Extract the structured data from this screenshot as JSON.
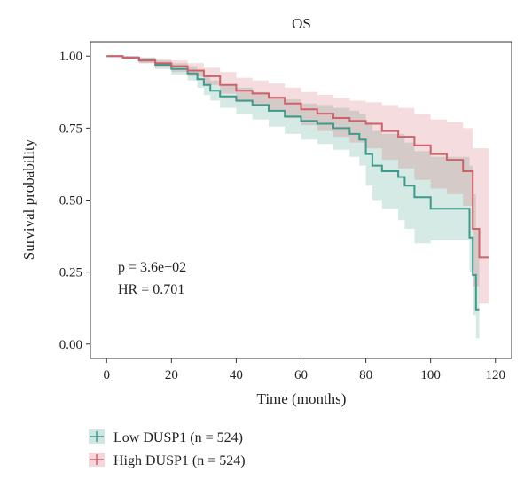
{
  "chart_data": {
    "type": "line",
    "subtype": "kaplan-meier survival curve with confidence bands",
    "title": "OS",
    "xlabel": "Time (months)",
    "ylabel": "Survival probability",
    "xlim": [
      -5,
      125
    ],
    "ylim": [
      -0.05,
      1.05
    ],
    "xticks": [
      0,
      20,
      40,
      60,
      80,
      100,
      120
    ],
    "yticks": [
      0.0,
      0.25,
      0.5,
      0.75,
      1.0
    ],
    "xtick_labels": [
      "0",
      "20",
      "40",
      "60",
      "80",
      "100",
      "120"
    ],
    "ytick_labels": [
      "0.00",
      "0.25",
      "0.50",
      "0.75",
      "1.00"
    ],
    "annotations": [
      "p = 3.6e−02",
      "HR = 0.701"
    ],
    "legend_position": "bottom-left, below plot",
    "grid": false,
    "series": [
      {
        "name": "Low DUSP1 (n = 524)",
        "color": "#3e9a8a",
        "band_color": "#cfe3df",
        "x": [
          0,
          5,
          10,
          15,
          20,
          25,
          28,
          30,
          32,
          35,
          40,
          45,
          50,
          55,
          60,
          65,
          70,
          75,
          78,
          80,
          82,
          85,
          90,
          92,
          95,
          100,
          105,
          110,
          112,
          113,
          114,
          115
        ],
        "y": [
          1.0,
          0.995,
          0.985,
          0.97,
          0.955,
          0.94,
          0.92,
          0.9,
          0.88,
          0.86,
          0.845,
          0.83,
          0.81,
          0.79,
          0.775,
          0.765,
          0.75,
          0.73,
          0.71,
          0.66,
          0.62,
          0.6,
          0.58,
          0.55,
          0.51,
          0.47,
          0.47,
          0.47,
          0.37,
          0.24,
          0.12,
          0.12
        ],
        "ci_low": [
          1.0,
          0.99,
          0.975,
          0.955,
          0.935,
          0.915,
          0.89,
          0.865,
          0.845,
          0.82,
          0.8,
          0.78,
          0.755,
          0.73,
          0.71,
          0.695,
          0.675,
          0.65,
          0.62,
          0.55,
          0.5,
          0.47,
          0.43,
          0.4,
          0.35,
          0.36,
          0.36,
          0.36,
          0.25,
          0.1,
          0.02,
          0.02
        ],
        "ci_high": [
          1.0,
          1.0,
          0.995,
          0.985,
          0.975,
          0.965,
          0.95,
          0.935,
          0.915,
          0.9,
          0.89,
          0.875,
          0.86,
          0.85,
          0.835,
          0.83,
          0.82,
          0.81,
          0.8,
          0.77,
          0.74,
          0.73,
          0.73,
          0.7,
          0.67,
          0.65,
          0.65,
          0.65,
          0.62,
          0.52,
          0.4,
          0.4
        ]
      },
      {
        "name": "High DUSP1 (n = 524)",
        "color": "#d1606a",
        "band_color": "#f6d2d2",
        "x": [
          0,
          5,
          10,
          15,
          20,
          25,
          30,
          35,
          40,
          45,
          50,
          55,
          60,
          65,
          70,
          75,
          80,
          85,
          90,
          95,
          100,
          105,
          110,
          113,
          115,
          118
        ],
        "y": [
          1.0,
          0.995,
          0.985,
          0.975,
          0.965,
          0.95,
          0.93,
          0.9,
          0.88,
          0.87,
          0.855,
          0.835,
          0.815,
          0.8,
          0.785,
          0.775,
          0.765,
          0.74,
          0.72,
          0.69,
          0.66,
          0.64,
          0.6,
          0.4,
          0.3,
          0.3
        ],
        "ci_low": [
          1.0,
          0.99,
          0.975,
          0.96,
          0.945,
          0.93,
          0.9,
          0.87,
          0.84,
          0.83,
          0.81,
          0.785,
          0.76,
          0.74,
          0.72,
          0.7,
          0.68,
          0.64,
          0.61,
          0.57,
          0.54,
          0.52,
          0.48,
          0.2,
          0.14,
          0.14
        ],
        "ci_high": [
          1.0,
          1.0,
          0.995,
          0.99,
          0.985,
          0.975,
          0.96,
          0.945,
          0.925,
          0.915,
          0.905,
          0.89,
          0.875,
          0.865,
          0.855,
          0.845,
          0.84,
          0.83,
          0.82,
          0.8,
          0.78,
          0.77,
          0.75,
          0.68,
          0.68,
          0.68
        ]
      }
    ]
  }
}
